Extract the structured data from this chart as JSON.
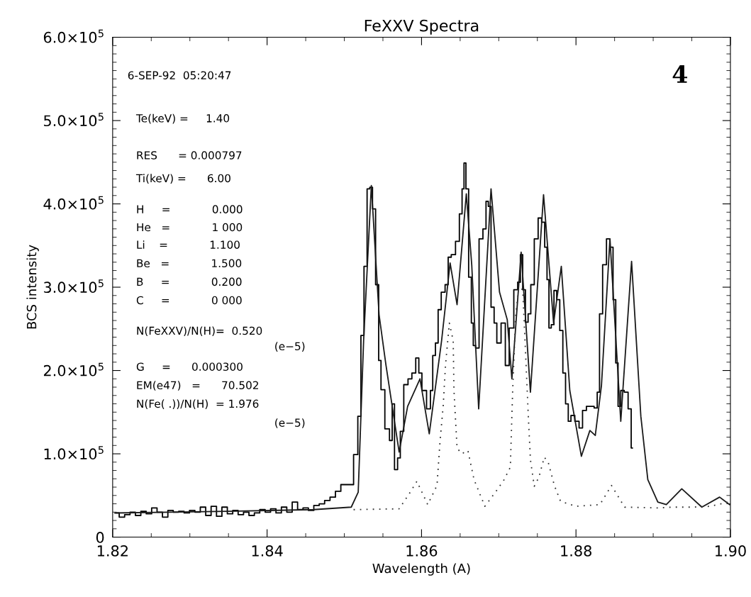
{
  "chart_data": {
    "type": "line",
    "title": "FeXXV Spectra",
    "xlabel": "Wavelength (A)",
    "ylabel": "BCS intensity",
    "xlim": [
      1.82,
      1.9
    ],
    "ylim": [
      0,
      600000
    ],
    "xticks": [
      {
        "value": 1.82,
        "label": "1.82"
      },
      {
        "value": 1.84,
        "label": "1.84"
      },
      {
        "value": 1.86,
        "label": "1.86"
      },
      {
        "value": 1.88,
        "label": "1.88"
      },
      {
        "value": 1.9,
        "label": "1.90"
      }
    ],
    "yticks": [
      {
        "value": 0,
        "label": "0"
      },
      {
        "value": 100000,
        "label": "1.0×10$^{5}$"
      },
      {
        "value": 200000,
        "label": "2.0×10$^{5}$"
      },
      {
        "value": 300000,
        "label": "3.0×10$^{5}$"
      },
      {
        "value": 400000,
        "label": "4.0×10$^{5}$"
      },
      {
        "value": 500000,
        "label": "5.0×10$^{5}$"
      },
      {
        "value": 600000,
        "label": "6.0×10$^{5}$"
      }
    ],
    "grid": false,
    "legend": false,
    "annotations": [
      "6-SEP-92  05:20:47",
      "4",
      "Te(keV) =     1.40",
      "RES      = 0.000797",
      "Ti(keV) =      6.00",
      "H     =            0.000",
      "He   =            1 000",
      "Li    =            1.100",
      "Be   =            1.500",
      "B     =            0.200",
      "C     =            0 000",
      "N(FeXXV)/N(H)=  0.520",
      "(e−5)",
      "G     =      0.000300",
      "EM(e47)   =      70.502",
      "N(Fe( .))/N(H)  = 1.976",
      "(e−5)"
    ],
    "series": [
      {
        "type": "step",
        "color": "#000000",
        "line_style": "solid",
        "x": [
          1.8205,
          1.8212,
          1.8219,
          1.8226,
          1.8233,
          1.824,
          1.8247,
          1.8254,
          1.8261,
          1.8268,
          1.8275,
          1.8282,
          1.8289,
          1.8296,
          1.8303,
          1.831,
          1.8317,
          1.8324,
          1.8331,
          1.8338,
          1.8345,
          1.8352,
          1.8359,
          1.8366,
          1.8373,
          1.838,
          1.8387,
          1.8394,
          1.8401,
          1.8408,
          1.8415,
          1.8422,
          1.8429,
          1.8436,
          1.8443,
          1.845,
          1.8457,
          1.8464,
          1.8471,
          1.8478,
          1.8485,
          1.8492,
          1.8499,
          1.8509,
          1.8515,
          1.852,
          1.8523,
          1.8528,
          1.8531,
          1.8535,
          1.8538,
          1.8543,
          1.8546,
          1.8549,
          1.8556,
          1.8561,
          1.8563,
          1.8567,
          1.8571,
          1.8574,
          1.858,
          1.8585,
          1.859,
          1.8595,
          1.8598,
          1.8603,
          1.861,
          1.8613,
          1.8616,
          1.862,
          1.8623,
          1.8628,
          1.8633,
          1.8636,
          1.8641,
          1.8647,
          1.8651,
          1.8654,
          1.8656,
          1.8659,
          1.8663,
          1.8666,
          1.8668,
          1.8672,
          1.8677,
          1.8682,
          1.8685,
          1.8688,
          1.8692,
          1.8696,
          1.8699,
          1.8707,
          1.871,
          1.8717,
          1.8722,
          1.8727,
          1.8729,
          1.8733,
          1.8736,
          1.874,
          1.8743,
          1.8749,
          1.8753,
          1.8758,
          1.8761,
          1.8764,
          1.8766,
          1.877,
          1.8773,
          1.8777,
          1.8781,
          1.8785,
          1.8788,
          1.8792,
          1.8795,
          1.8802,
          1.8806,
          1.8811,
          1.8816,
          1.8821,
          1.8826,
          1.8829,
          1.8832,
          1.8837,
          1.8842,
          1.8846,
          1.885,
          1.8853,
          1.8856,
          1.886,
          1.8865,
          1.887,
          1.8873
        ],
        "values": [
          29000,
          24000,
          27000,
          30000,
          26000,
          31000,
          28000,
          35000,
          30000,
          24000,
          32000,
          30000,
          31000,
          29000,
          32000,
          30000,
          36000,
          26000,
          37000,
          25000,
          36000,
          28000,
          32000,
          27000,
          30000,
          26000,
          29000,
          33000,
          30000,
          34000,
          29000,
          36000,
          30000,
          42000,
          33000,
          35000,
          32000,
          38000,
          40000,
          44000,
          48000,
          55000,
          63000,
          63000,
          99000,
          145000,
          242000,
          325000,
          418000,
          420000,
          394000,
          303000,
          212000,
          177000,
          130000,
          116000,
          160000,
          81000,
          95000,
          127000,
          183000,
          190000,
          197000,
          215000,
          197000,
          176000,
          154000,
          176000,
          218000,
          233000,
          273000,
          294000,
          303000,
          336000,
          339000,
          355000,
          388000,
          418000,
          449000,
          418000,
          312000,
          257000,
          230000,
          227000,
          358000,
          370000,
          403000,
          397000,
          276000,
          257000,
          233000,
          257000,
          206000,
          251000,
          297000,
          306000,
          339000,
          297000,
          258000,
          268000,
          303000,
          358000,
          383000,
          378000,
          348000,
          309000,
          251000,
          255000,
          296000,
          285000,
          248000,
          197000,
          160000,
          139000,
          146000,
          139000,
          131000,
          152000,
          157000,
          157000,
          155000,
          174000,
          268000,
          327000,
          358000,
          348000,
          285000,
          209000,
          157000,
          176000,
          174000,
          154000,
          107000
        ]
      },
      {
        "color": "#1a1a1a",
        "line_style": "solid",
        "x": [
          1.8203,
          1.835,
          1.846,
          1.8509,
          1.8518,
          1.8525,
          1.8535,
          1.8545,
          1.8554,
          1.8571,
          1.8582,
          1.8598,
          1.861,
          1.8626,
          1.8637,
          1.8646,
          1.8658,
          1.8665,
          1.8674,
          1.869,
          1.8701,
          1.8711,
          1.8717,
          1.8729,
          1.8741,
          1.8758,
          1.8771,
          1.8781,
          1.8792,
          1.8807,
          1.8818,
          1.8825,
          1.8833,
          1.8844,
          1.8858,
          1.8872,
          1.8884,
          1.8893,
          1.8906,
          1.8917,
          1.8937,
          1.8963,
          1.8986,
          1.8999
        ],
        "values": [
          29000,
          31000,
          33000,
          36000,
          54000,
          236000,
          422000,
          267000,
          206000,
          102000,
          157000,
          190000,
          124000,
          236000,
          329000,
          279000,
          412000,
          327000,
          154000,
          418000,
          294000,
          261000,
          190000,
          342000,
          174000,
          411000,
          257000,
          325000,
          176000,
          97000,
          128000,
          122000,
          182000,
          358000,
          139000,
          331000,
          145000,
          69000,
          42000,
          39000,
          58000,
          36000,
          48000,
          39000
        ]
      },
      {
        "color": "#333333",
        "line_style": "dotted",
        "x": [
          1.8512,
          1.8571,
          1.8584,
          1.8594,
          1.8608,
          1.862,
          1.8624,
          1.8628,
          1.8631,
          1.8636,
          1.8641,
          1.8642,
          1.8646,
          1.8652,
          1.866,
          1.8668,
          1.8682,
          1.8698,
          1.8707,
          1.8715,
          1.8718,
          1.8722,
          1.8726,
          1.8731,
          1.8734,
          1.8738,
          1.8741,
          1.8746,
          1.8752,
          1.8759,
          1.8764,
          1.8772,
          1.878,
          1.88,
          1.8831,
          1.8846,
          1.8863,
          1.8906,
          1.8925,
          1.8951,
          1.8974,
          1.8997
        ],
        "values": [
          33000,
          34000,
          52000,
          67000,
          39000,
          62000,
          116000,
          157000,
          206000,
          257000,
          236000,
          176000,
          107000,
          100000,
          104000,
          69000,
          37000,
          57000,
          69000,
          84000,
          176000,
          267000,
          300000,
          297000,
          236000,
          151000,
          93000,
          61000,
          72000,
          96000,
          90000,
          62000,
          43000,
          37000,
          39000,
          62000,
          36000,
          35000,
          36000,
          36000,
          37000,
          42000
        ]
      }
    ]
  }
}
